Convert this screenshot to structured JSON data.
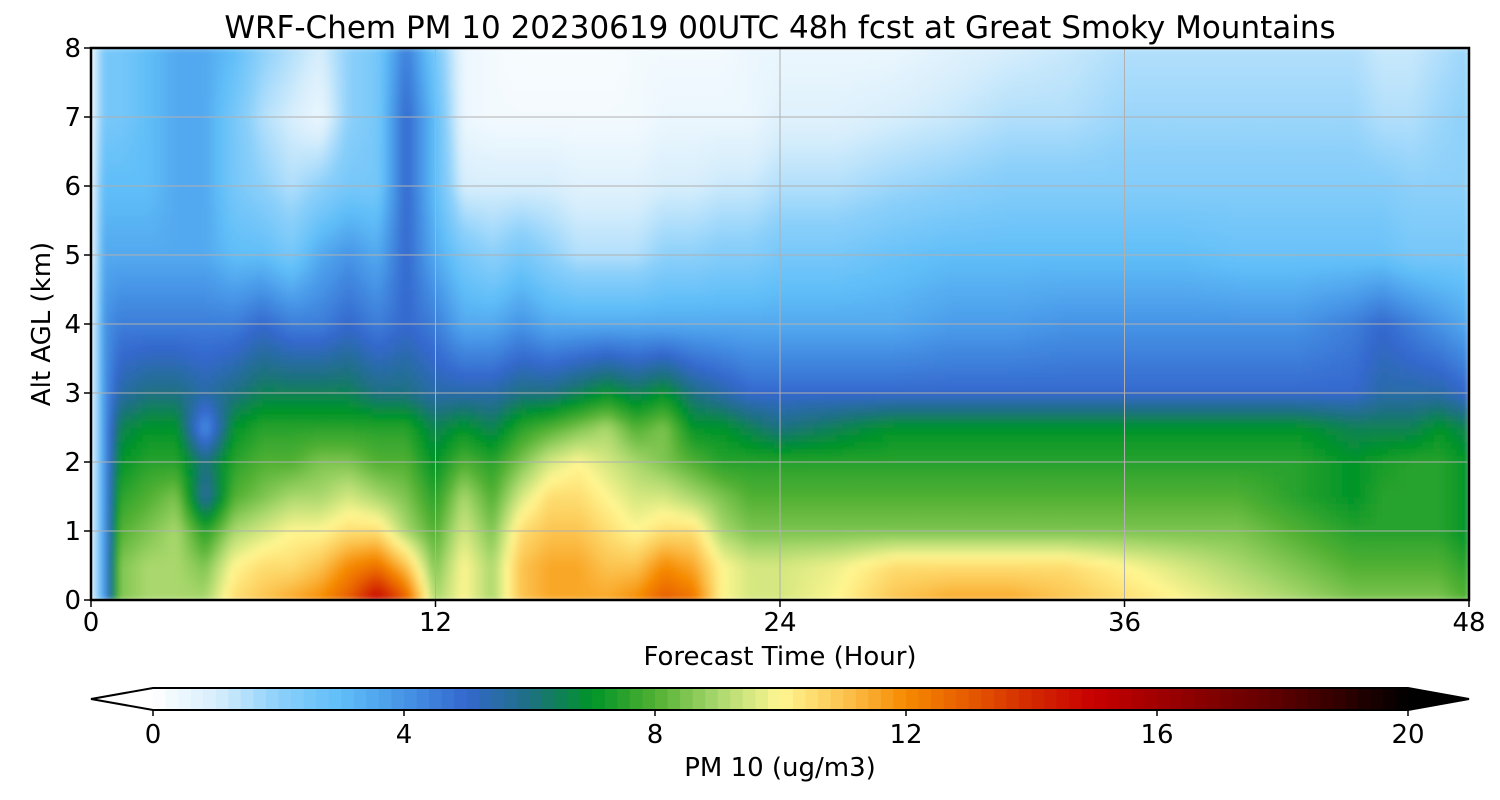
{
  "chart_data": {
    "type": "heatmap",
    "title": "WRF-Chem PM 10  20230619 00UTC 48h fcst at Great Smoky Mountains",
    "xlabel": "Forecast Time (Hour)",
    "ylabel": "Alt AGL (km)",
    "xlim": [
      0,
      48
    ],
    "ylim": [
      0,
      8
    ],
    "xticks": [
      "0",
      "12",
      "24",
      "36",
      "48"
    ],
    "yticks": [
      "0",
      "1",
      "2",
      "3",
      "4",
      "5",
      "6",
      "7",
      "8"
    ],
    "grid": true,
    "x": [
      0,
      0.5,
      1,
      2,
      3,
      4,
      5,
      6,
      7,
      8,
      9,
      10,
      11,
      12,
      13,
      14,
      15,
      16,
      17,
      18,
      19,
      20,
      21,
      22,
      23,
      24,
      26,
      28,
      30,
      32,
      34,
      36,
      38,
      40,
      42,
      44,
      45,
      46,
      47,
      48
    ],
    "y": [
      0,
      0.5,
      1,
      1.5,
      2,
      2.5,
      3,
      4,
      5,
      6,
      7,
      8
    ],
    "z": [
      [
        0.5,
        4,
        8.5,
        9,
        9,
        9,
        10.5,
        11,
        11.5,
        12,
        13,
        15,
        13,
        9,
        10,
        9,
        11,
        11.5,
        11.5,
        11.5,
        12,
        13,
        12.5,
        10,
        9.5,
        9.5,
        10,
        11,
        11.5,
        11.5,
        11,
        10.5,
        10,
        9.5,
        9,
        8.5,
        8.5,
        8.5,
        8.5,
        8
      ],
      [
        0.5,
        4,
        8.5,
        9,
        9,
        8.5,
        10,
        10.5,
        10.5,
        11,
        12,
        12.5,
        11,
        8.5,
        10,
        9,
        11,
        11.5,
        11.5,
        11,
        11,
        12,
        11.5,
        10,
        9.5,
        9.5,
        9.8,
        10.5,
        10.5,
        10.5,
        10.5,
        10,
        9.5,
        9,
        8.5,
        8,
        8,
        8,
        8,
        7.5
      ],
      [
        0.5,
        4,
        8,
        8.5,
        9,
        7.5,
        9,
        9.5,
        10,
        10,
        10.5,
        10.5,
        9,
        8,
        9.5,
        8.5,
        10.5,
        11,
        11,
        10.5,
        10,
        10.5,
        10.5,
        9,
        8.5,
        8.5,
        8.5,
        8.5,
        8.5,
        8.5,
        8.5,
        8.5,
        8.5,
        8.5,
        8,
        7.5,
        7.5,
        7.5,
        7.5,
        7
      ],
      [
        0.5,
        4,
        7.5,
        8,
        8.5,
        5.5,
        8,
        8.5,
        9,
        9,
        9.5,
        9,
        8.5,
        7.5,
        9,
        8,
        9.5,
        10.5,
        10.5,
        10,
        9.5,
        9.5,
        9,
        8.5,
        8,
        8,
        8,
        8,
        8,
        8,
        8,
        8,
        8,
        8,
        7.5,
        7,
        7.5,
        7.5,
        7.5,
        7
      ],
      [
        0.5,
        4,
        7,
        7.5,
        7.5,
        6,
        7.5,
        8,
        8,
        8.5,
        8.5,
        8,
        8,
        7,
        8,
        7.5,
        8.5,
        9.5,
        10,
        9.5,
        9,
        8.5,
        8,
        7.5,
        7.5,
        7.5,
        7.5,
        7.5,
        7.5,
        7.5,
        7.5,
        7.5,
        7.5,
        7.5,
        7.5,
        7,
        7.3,
        7.5,
        7.5,
        7
      ],
      [
        0.5,
        4,
        6.5,
        7,
        7,
        4,
        7,
        7.5,
        7.5,
        7.5,
        7.5,
        7.5,
        7.5,
        6.5,
        7,
        6.5,
        7.5,
        8,
        8.5,
        9,
        8,
        8.5,
        7,
        7,
        6.5,
        6,
        6.5,
        7,
        7,
        7,
        7,
        7,
        7,
        7,
        7,
        6.5,
        6.5,
        6.5,
        7,
        6.5
      ],
      [
        0.5,
        4,
        5.5,
        6,
        6,
        5.5,
        6,
        6.5,
        6.5,
        6.5,
        6.5,
        6,
        6,
        5.5,
        5.5,
        5.5,
        6,
        6,
        6.5,
        7,
        6.5,
        7,
        6,
        5.5,
        5,
        5,
        5,
        5,
        5,
        5,
        5,
        5,
        5,
        5,
        5,
        5,
        5.5,
        5.5,
        5.5,
        5
      ],
      [
        0.5,
        4,
        4.5,
        4.5,
        4.5,
        4.5,
        4.5,
        5,
        4.5,
        4.5,
        5,
        4.5,
        5,
        4.5,
        3.5,
        3.5,
        4,
        3.5,
        3.5,
        3.5,
        3.5,
        3.5,
        3.5,
        3.5,
        3.5,
        3.5,
        3.5,
        3.5,
        3.8,
        3.8,
        4,
        4,
        4,
        4,
        4,
        4.5,
        5,
        4.5,
        4,
        3.5
      ],
      [
        0.5,
        3.5,
        3.5,
        3.5,
        3.5,
        3.5,
        3,
        3,
        2.5,
        3.5,
        4,
        3.5,
        5,
        3.5,
        2.5,
        2,
        2.5,
        2,
        1.5,
        1.5,
        1.5,
        2,
        2,
        2.2,
        2.2,
        2.5,
        2.5,
        2.8,
        3,
        3,
        3,
        3,
        3,
        2.8,
        2.8,
        2.8,
        2.8,
        2.5,
        2.5,
        2.5
      ],
      [
        0.5,
        3,
        3,
        3,
        3.5,
        3.5,
        2.5,
        2,
        1.5,
        2,
        2.5,
        2.5,
        5,
        3,
        1,
        1,
        1,
        1,
        0.8,
        0.8,
        0.8,
        1,
        1,
        1.2,
        1.2,
        1.5,
        1.5,
        1.8,
        2,
        2.2,
        2.2,
        2.2,
        2.2,
        2.2,
        2.2,
        2.2,
        2.2,
        2,
        2,
        2
      ],
      [
        0.5,
        2.5,
        2.5,
        3,
        3.5,
        3.5,
        2.5,
        1.5,
        1,
        0.5,
        2,
        2.5,
        5,
        3,
        0.5,
        0.3,
        0.3,
        0.3,
        0.3,
        0.3,
        0.3,
        0.5,
        0.5,
        0.5,
        0.5,
        0.8,
        0.8,
        1,
        1.2,
        1.5,
        1.5,
        1.8,
        1.8,
        1.8,
        1.8,
        1.8,
        1.5,
        1.5,
        1.8,
        2
      ],
      [
        0.5,
        2.5,
        2.5,
        3,
        3.5,
        3.5,
        3,
        2,
        1.5,
        1,
        2,
        2.5,
        4.5,
        2.5,
        0.5,
        0.3,
        0.2,
        0.2,
        0.2,
        0.2,
        0.3,
        0.3,
        0.3,
        0.3,
        0.5,
        0.5,
        0.5,
        0.5,
        0.8,
        1,
        1.2,
        1.5,
        1.5,
        1.5,
        1.5,
        1.5,
        1.2,
        1.2,
        1.5,
        1.8
      ]
    ],
    "colorbar": {
      "label": "PM 10  (ug/m3)",
      "ticks": [
        "0",
        "4",
        "8",
        "12",
        "16",
        "20"
      ],
      "range": [
        0,
        20
      ],
      "extend": "both",
      "placement": "bottom"
    }
  }
}
